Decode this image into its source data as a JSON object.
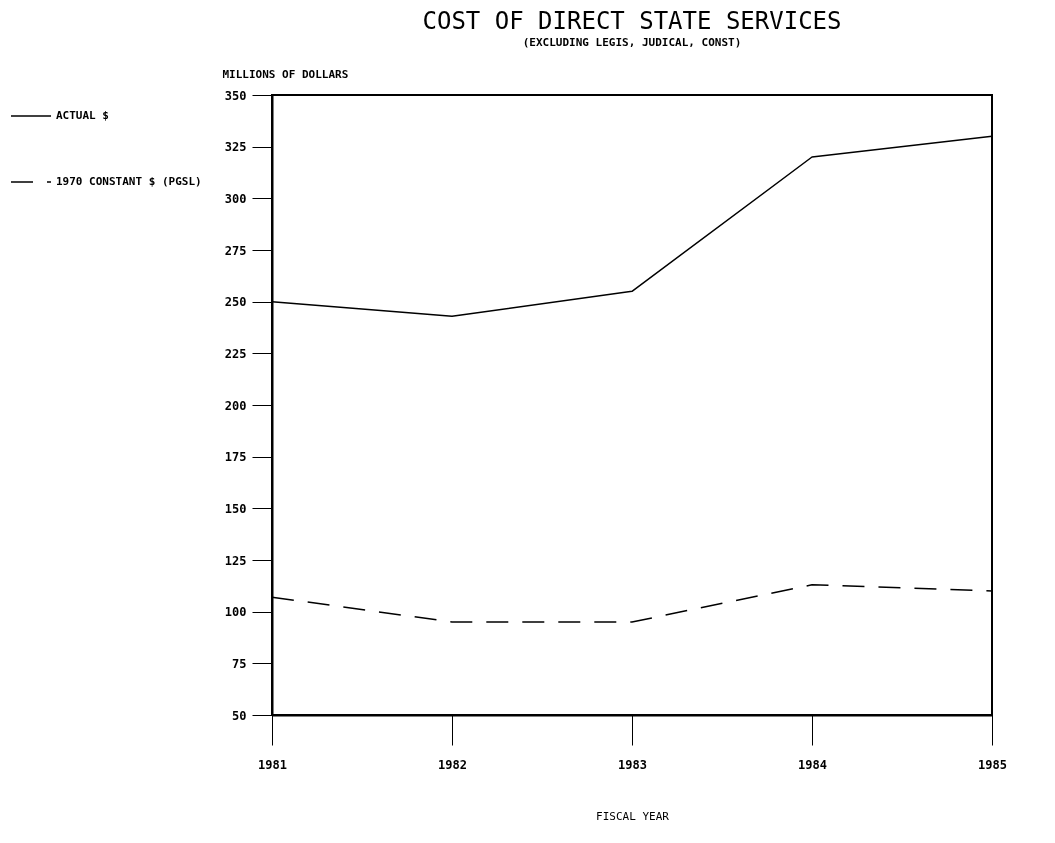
{
  "chart_data": {
    "type": "line",
    "title": "COST OF DIRECT STATE SERVICES",
    "subtitle": "(EXCLUDING LEGIS, JUDICAL, CONST)",
    "xlabel": "FISCAL YEAR",
    "ylabel": "MILLIONS OF DOLLARS",
    "x": [
      1981,
      1982,
      1983,
      1984,
      1985
    ],
    "series": [
      {
        "name": "ACTUAL $",
        "color": "#000000",
        "line_style": "solid",
        "values": [
          250,
          243,
          255,
          320,
          330
        ]
      },
      {
        "name": "1970 CONSTANT $ (PGSL)",
        "color": "#000000",
        "line_style": "dashed",
        "values": [
          107,
          95,
          95,
          113,
          110
        ]
      }
    ],
    "xlim": [
      1981,
      1985
    ],
    "xticks": [
      1981,
      1982,
      1983,
      1984,
      1985
    ],
    "ylim": [
      50,
      350
    ],
    "yticks": [
      50,
      75,
      100,
      125,
      150,
      175,
      200,
      225,
      250,
      275,
      300,
      325,
      350
    ],
    "grid": false,
    "legend": "left",
    "marker": "none"
  }
}
